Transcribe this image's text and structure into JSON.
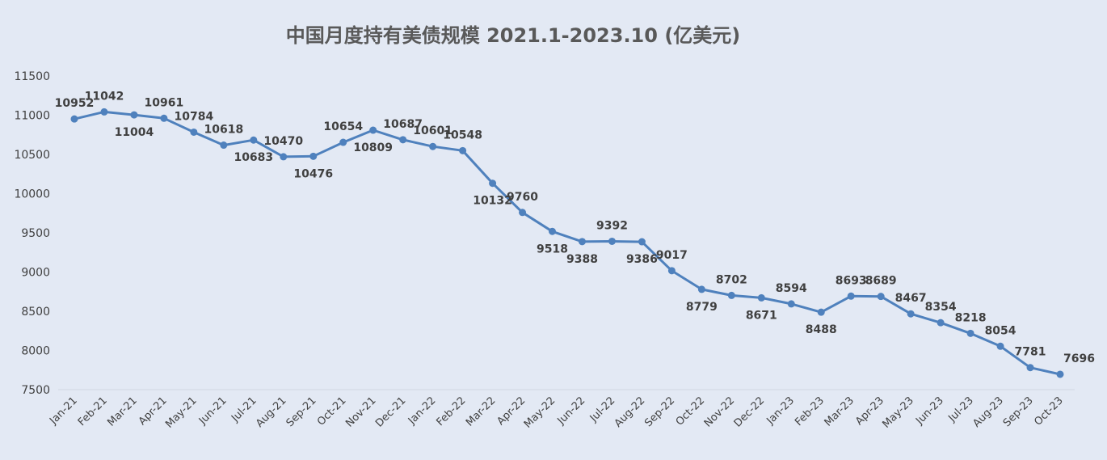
{
  "chart_data": {
    "type": "line",
    "title": "中国月度持有美债规模 2021.1-2023.10 (亿美元)",
    "xlabel": "",
    "ylabel": "",
    "ylim": [
      7500,
      11500
    ],
    "yticks": [
      7500,
      8000,
      8500,
      9000,
      9500,
      10000,
      10500,
      11000,
      11500
    ],
    "grid": false,
    "legend": "none",
    "line_color": "#4f81bd",
    "categories": [
      "Jan-21",
      "Feb-21",
      "Mar-21",
      "Apr-21",
      "May-21",
      "Jun-21",
      "Jul-21",
      "Aug-21",
      "Sep-21",
      "Oct-21",
      "Nov-21",
      "Dec-21",
      "Jan-22",
      "Feb-22",
      "Mar-22",
      "Apr-22",
      "May-22",
      "Jun-22",
      "Jul-22",
      "Aug-22",
      "Sep-22",
      "Oct-22",
      "Nov-22",
      "Dec-22",
      "Jan-23",
      "Feb-23",
      "Mar-23",
      "Apr-23",
      "May-23",
      "Jun-23",
      "Jul-23",
      "Aug-23",
      "Sep-23",
      "Oct-23"
    ],
    "values": [
      10952,
      11042,
      11004,
      10961,
      10784,
      10618,
      10683,
      10470,
      10476,
      10654,
      10809,
      10687,
      10601,
      10548,
      10132,
      9760,
      9518,
      9388,
      9392,
      9386,
      9017,
      8779,
      8702,
      8671,
      8594,
      8488,
      8693,
      8689,
      8467,
      8354,
      8218,
      8054,
      7781,
      7696
    ],
    "label_positions": [
      "above",
      "above",
      "below",
      "above",
      "above",
      "above",
      "below",
      "above",
      "below",
      "above",
      "below",
      "above",
      "above",
      "above",
      "below",
      "above",
      "below",
      "below",
      "above",
      "below",
      "above",
      "below",
      "above",
      "below",
      "above",
      "below",
      "above",
      "above",
      "above",
      "above",
      "above",
      "above",
      "above",
      "above"
    ]
  }
}
